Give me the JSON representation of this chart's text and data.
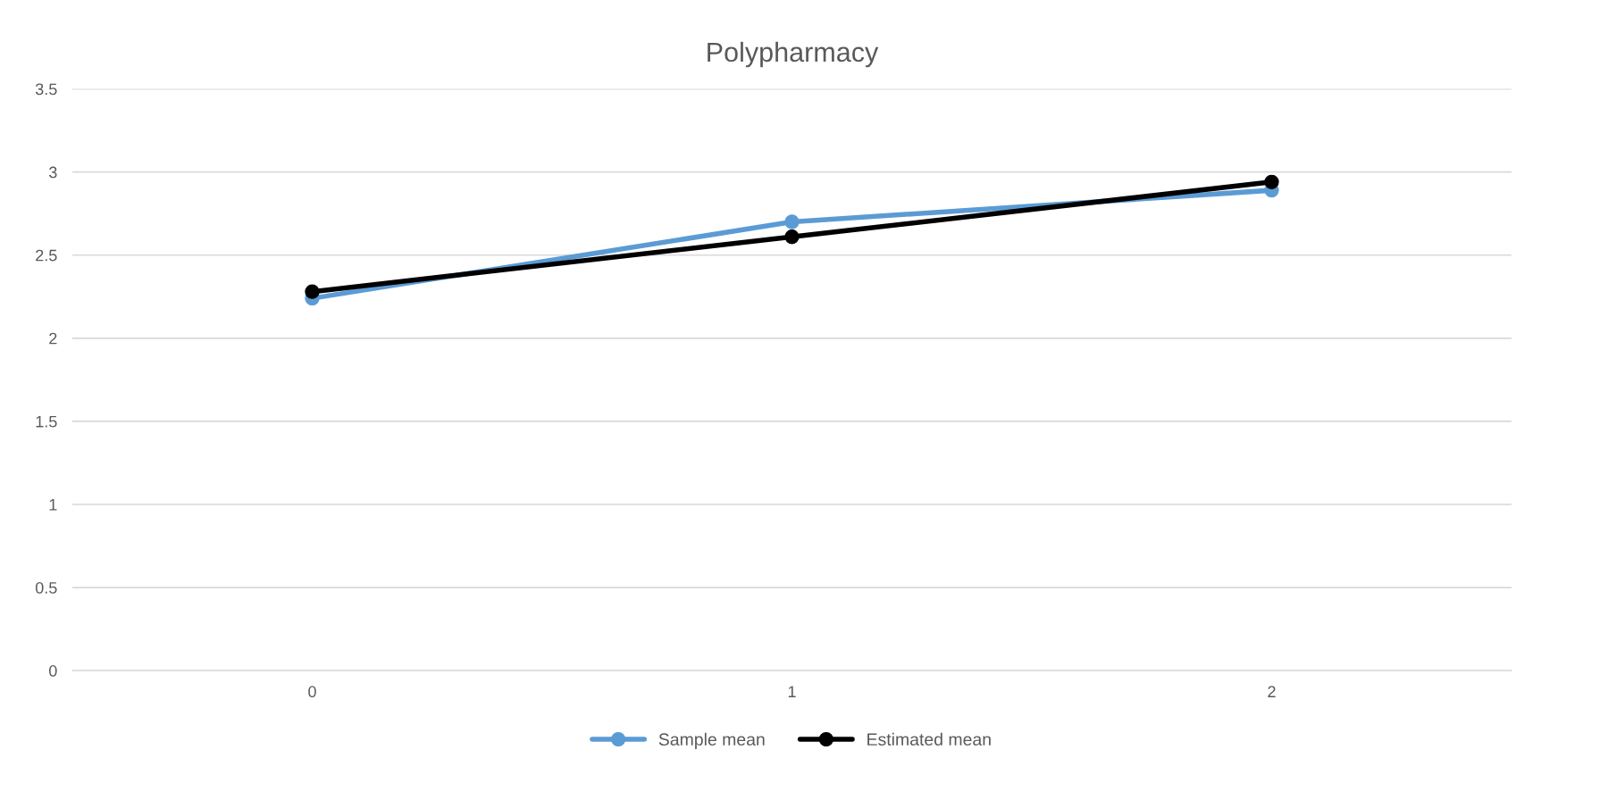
{
  "chart_data": {
    "type": "line",
    "title": "Polypharmacy",
    "categories": [
      "0",
      "1",
      "2"
    ],
    "series": [
      {
        "name": "Sample mean",
        "color": "#5b9bd5",
        "values": [
          2.24,
          2.7,
          2.89
        ]
      },
      {
        "name": "Estimated mean",
        "color": "#000000",
        "values": [
          2.28,
          2.61,
          2.94
        ]
      }
    ],
    "ylim": [
      0,
      3.5
    ],
    "yticks": [
      0,
      0.5,
      1,
      1.5,
      2,
      2.5,
      3,
      3.5
    ],
    "grid": "y",
    "legend": "bottom",
    "marker": "circle",
    "line_style": "solid"
  }
}
